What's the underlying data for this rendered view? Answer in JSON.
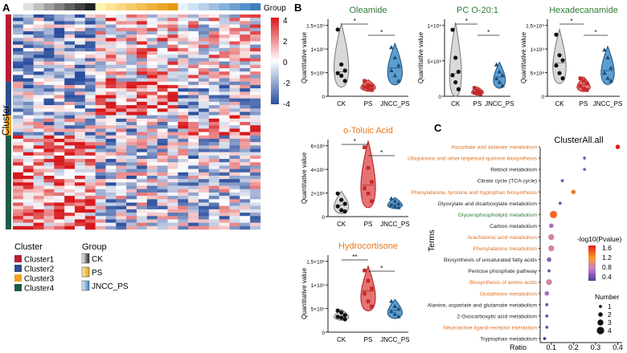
{
  "panels": {
    "a": "A",
    "b": "B",
    "c": "C"
  },
  "heatmap": {
    "group_label": "Group",
    "cluster_label": "Cluster",
    "colorbar_ticks": [
      "4",
      "2",
      "0",
      "-2",
      "-4"
    ],
    "cluster_legend_title": "Cluster",
    "clusters": [
      {
        "name": "Cluster1",
        "color": "#b21f35"
      },
      {
        "name": "Cluster2",
        "color": "#2f4c8c"
      },
      {
        "name": "Cluster3",
        "color": "#f2a321"
      },
      {
        "name": "Cluster4",
        "color": "#1f5a46"
      }
    ],
    "group_legend_title": "Group",
    "groups": [
      {
        "name": "CK",
        "grad": [
          "#ffffff",
          "#222222"
        ]
      },
      {
        "name": "PS",
        "grad": [
          "#fff2b0",
          "#e89a10"
        ]
      },
      {
        "name": "JNCC_PS",
        "grad": [
          "#e6f2fb",
          "#3e7fbf"
        ]
      }
    ]
  },
  "chart_data": [
    {
      "type": "violin",
      "title": "Oleamide",
      "title_color": "#2e7d32",
      "ylabel": "Quantitative value",
      "categories": [
        "CK",
        "PS",
        "JNCC_PS"
      ],
      "yticks": [
        "0",
        "5×10⁸",
        "1×10⁹",
        "1.5×10⁹"
      ],
      "ylim": [
        0,
        1.5
      ],
      "points": [
        [
          1.3,
          0.62,
          0.5,
          0.45,
          0.4,
          0.3
        ],
        [
          0.3,
          0.22,
          0.2,
          0.18,
          0.15,
          0.12
        ],
        [
          0.95,
          0.75,
          0.6,
          0.5,
          0.4,
          0.3
        ]
      ],
      "significance": [
        "*",
        "*"
      ]
    },
    {
      "type": "violin",
      "title": "PC O-20:1",
      "title_color": "#2e7d32",
      "ylabel": "Quantitative value",
      "categories": [
        "CK",
        "PS",
        "JNCC_PS"
      ],
      "yticks": [
        "0",
        "5×10⁸",
        "1×10⁹"
      ],
      "ylim": [
        0,
        1.1
      ],
      "points": [
        [
          0.95,
          0.55,
          0.35,
          0.3,
          0.2,
          0.1
        ],
        [
          0.12,
          0.08,
          0.06,
          0.05,
          0.04,
          0.03
        ],
        [
          0.45,
          0.35,
          0.3,
          0.25,
          0.2,
          0.15
        ]
      ],
      "significance": [
        "*",
        "*"
      ]
    },
    {
      "type": "violin",
      "title": "Hexadecanamide",
      "title_color": "#2e7d32",
      "ylabel": "Quantitative value",
      "categories": [
        "CK",
        "PS",
        "JNCC_PS"
      ],
      "yticks": [
        "0",
        "5×10⁸",
        "1×10⁹",
        "1.5×10⁹"
      ],
      "ylim": [
        0,
        1.5
      ],
      "points": [
        [
          1.2,
          0.8,
          0.7,
          0.6,
          0.45,
          0.35
        ],
        [
          0.35,
          0.3,
          0.25,
          0.2,
          0.15,
          0.12
        ],
        [
          0.9,
          0.75,
          0.55,
          0.45,
          0.35,
          0.3
        ]
      ],
      "significance": [
        "*",
        "*"
      ]
    },
    {
      "type": "violin",
      "title": "o-Toluic Acid",
      "title_color": "#e8781a",
      "ylabel": "Quantitative value",
      "categories": [
        "CK",
        "PS",
        "JNCC_PS"
      ],
      "yticks": [
        "0",
        "2×10⁸",
        "4×10⁸",
        "6×10⁸"
      ],
      "ylim": [
        0,
        6
      ],
      "points": [
        [
          1.8,
          1.3,
          1.0,
          0.8,
          0.5,
          0.4
        ],
        [
          5.4,
          3.8,
          2.7,
          2.2,
          1.8,
          1.2
        ],
        [
          1.4,
          1.2,
          1.0,
          0.9,
          0.8,
          0.7
        ]
      ],
      "significance": [
        "*",
        "*"
      ]
    },
    {
      "type": "violin",
      "title": "Hydrocortisone",
      "title_color": "#e8781a",
      "ylabel": "Quantitative value",
      "categories": [
        "CK",
        "PS",
        "JNCC_PS"
      ],
      "yticks": [
        "0",
        "5×10⁵",
        "1×10⁶",
        "1.5×10⁶"
      ],
      "ylim": [
        0,
        1.5
      ],
      "points": [
        [
          0.42,
          0.38,
          0.33,
          0.3,
          0.28,
          0.25
        ],
        [
          1.2,
          1.0,
          0.85,
          0.75,
          0.6,
          0.5
        ],
        [
          0.6,
          0.5,
          0.45,
          0.4,
          0.35,
          0.3
        ]
      ],
      "significance": [
        "**",
        "*"
      ]
    },
    {
      "type": "scatter",
      "title": "ClusterAll.all",
      "xlabel": "Ratio",
      "ylabel": "Terms",
      "xticks": [
        "0.1",
        "0.2",
        "0.3",
        "0.4"
      ],
      "xlim": [
        0.05,
        0.42
      ],
      "terms": [
        {
          "name": "Ascorbate and aldarate metabolism",
          "color": "#e07020",
          "ratio": 0.4,
          "logp": 1.6,
          "number": 2
        },
        {
          "name": "Ubiquinone and other terpenoid-quinone biosynthesis",
          "color": "#e07020",
          "ratio": 0.25,
          "logp": 0.6,
          "number": 1
        },
        {
          "name": "Retinol metabolism",
          "color": "#222222",
          "ratio": 0.25,
          "logp": 0.6,
          "number": 1
        },
        {
          "name": "Citrate cycle (TCA cycle)",
          "color": "#222222",
          "ratio": 0.15,
          "logp": 0.55,
          "number": 1
        },
        {
          "name": "Phenylalanine, tyrosine and tryptophan biosynthesis",
          "color": "#e07020",
          "ratio": 0.2,
          "logp": 1.3,
          "number": 2
        },
        {
          "name": "Glyoxylate and dicarboxylate metabolism",
          "color": "#222222",
          "ratio": 0.14,
          "logp": 0.5,
          "number": 1
        },
        {
          "name": "Glycerophospholipid metabolism",
          "color": "#2e7d32",
          "ratio": 0.11,
          "logp": 1.35,
          "number": 4
        },
        {
          "name": "Carbon metabolism",
          "color": "#222222",
          "ratio": 0.1,
          "logp": 0.7,
          "number": 2
        },
        {
          "name": "Arachidonic acid metabolism",
          "color": "#e07020",
          "ratio": 0.1,
          "logp": 0.9,
          "number": 3
        },
        {
          "name": "Phenylalanine metabolism",
          "color": "#e07020",
          "ratio": 0.1,
          "logp": 0.9,
          "number": 3
        },
        {
          "name": "Biosynthesis of unsaturated fatty acids",
          "color": "#222222",
          "ratio": 0.09,
          "logp": 0.6,
          "number": 2
        },
        {
          "name": "Pentose phosphate pathway",
          "color": "#222222",
          "ratio": 0.09,
          "logp": 0.5,
          "number": 1
        },
        {
          "name": "Biosynthesis of amino acids",
          "color": "#e07020",
          "ratio": 0.09,
          "logp": 0.9,
          "number": 3
        },
        {
          "name": "Glutathione metabolism",
          "color": "#e07020",
          "ratio": 0.08,
          "logp": 0.7,
          "number": 2
        },
        {
          "name": "Alanine, aspartate and glutamate metabolism",
          "color": "#222222",
          "ratio": 0.08,
          "logp": 0.5,
          "number": 1
        },
        {
          "name": "2-Oxocarboxylic acid metabolism",
          "color": "#222222",
          "ratio": 0.08,
          "logp": 0.5,
          "number": 1
        },
        {
          "name": "Neuroactive ligand-receptor interaction",
          "color": "#e07020",
          "ratio": 0.08,
          "logp": 0.5,
          "number": 1
        },
        {
          "name": "Tryptophan metabolism",
          "color": "#222222",
          "ratio": 0.07,
          "logp": 0.4,
          "number": 1
        }
      ],
      "color_legend": {
        "title": "-log10(Pvalue)",
        "ticks": [
          "1.6",
          "1.2",
          "0.8",
          "0.4"
        ]
      },
      "size_legend": {
        "title": "Number",
        "items": [
          "1",
          "2",
          "3",
          "4"
        ]
      }
    }
  ]
}
